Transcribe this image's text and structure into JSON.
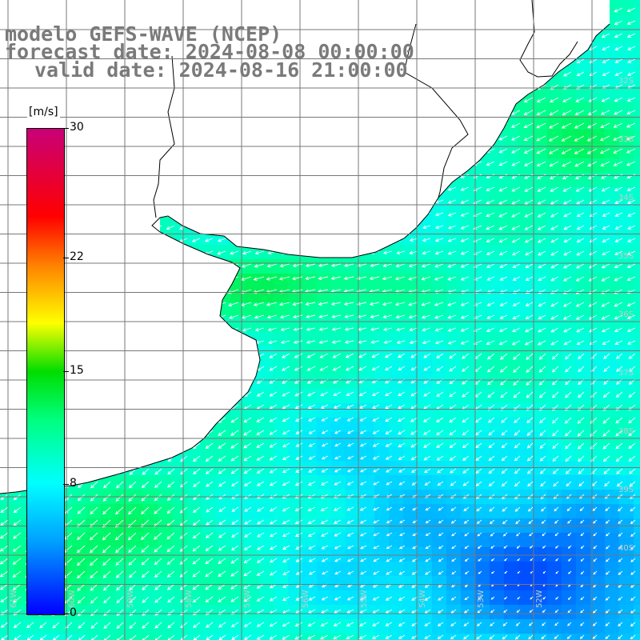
{
  "title": {
    "line1": "modelo GEFS-WAVE (NCEP)",
    "line2": "forecast date: 2024-08-08 00:00:00",
    "line3": "valid date: 2024-08-16 21:00:00"
  },
  "colorbar": {
    "unit": "[m/s]",
    "ticks": [
      {
        "label": "30",
        "value": 30
      },
      {
        "label": "22",
        "value": 22
      },
      {
        "label": "15",
        "value": 15
      },
      {
        "label": "8",
        "value": 8
      },
      {
        "label": "0",
        "value": 0
      }
    ],
    "colors": [
      "#0000ff",
      "#00a0ff",
      "#00ffff",
      "#00ff80",
      "#00dd00",
      "#ffff00",
      "#ff8000",
      "#ff0000",
      "#c80078"
    ]
  },
  "map": {
    "land_color": "#ffffff",
    "grid_color": "#777777",
    "coast_color": "#000000",
    "lat_labels": [
      "32S",
      "33S",
      "34S",
      "35S",
      "36S",
      "37S",
      "38S",
      "39S",
      "40S"
    ],
    "lon_labels": [
      "61W",
      "60W",
      "59W",
      "58W",
      "57W",
      "56W",
      "55W",
      "54W",
      "53W",
      "52W"
    ]
  }
}
